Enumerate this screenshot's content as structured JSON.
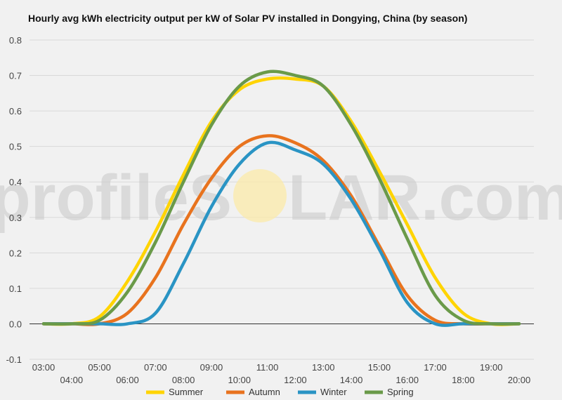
{
  "chart_data": {
    "type": "line",
    "title": "Hourly avg kWh electricity output per kW of Solar PV installed in Dongying, China (by season)",
    "x": [
      "03:00",
      "04:00",
      "05:00",
      "06:00",
      "07:00",
      "08:00",
      "09:00",
      "10:00",
      "11:00",
      "12:00",
      "13:00",
      "14:00",
      "15:00",
      "16:00",
      "17:00",
      "18:00",
      "19:00",
      "20:00"
    ],
    "ylim": [
      -0.1,
      0.8
    ],
    "yticks": [
      "0.8",
      "0.7",
      "0.6",
      "0.5",
      "0.4",
      "0.3",
      "0.2",
      "0.1",
      "0.0",
      "-0.1"
    ],
    "grid": true,
    "legend_position": "bottom",
    "watermark": {
      "left": "profileS",
      "right": "LAR.com"
    },
    "series": [
      {
        "name": "Summer",
        "color": "#ffd400",
        "values": [
          0,
          0,
          0.02,
          0.12,
          0.26,
          0.42,
          0.57,
          0.66,
          0.69,
          0.69,
          0.67,
          0.57,
          0.43,
          0.28,
          0.13,
          0.03,
          0,
          0
        ]
      },
      {
        "name": "Autumn",
        "color": "#e8731e",
        "values": [
          0,
          0,
          0,
          0.03,
          0.13,
          0.28,
          0.41,
          0.5,
          0.53,
          0.51,
          0.46,
          0.36,
          0.22,
          0.08,
          0.01,
          0,
          0,
          0
        ]
      },
      {
        "name": "Winter",
        "color": "#2a94c4",
        "values": [
          0,
          0,
          0,
          0,
          0.03,
          0.17,
          0.33,
          0.45,
          0.51,
          0.49,
          0.45,
          0.35,
          0.21,
          0.06,
          0,
          0,
          0,
          0
        ]
      },
      {
        "name": "Spring",
        "color": "#6a9a49",
        "values": [
          0,
          0,
          0.01,
          0.09,
          0.23,
          0.4,
          0.56,
          0.67,
          0.71,
          0.7,
          0.67,
          0.56,
          0.41,
          0.24,
          0.08,
          0.01,
          0,
          0
        ]
      }
    ]
  }
}
